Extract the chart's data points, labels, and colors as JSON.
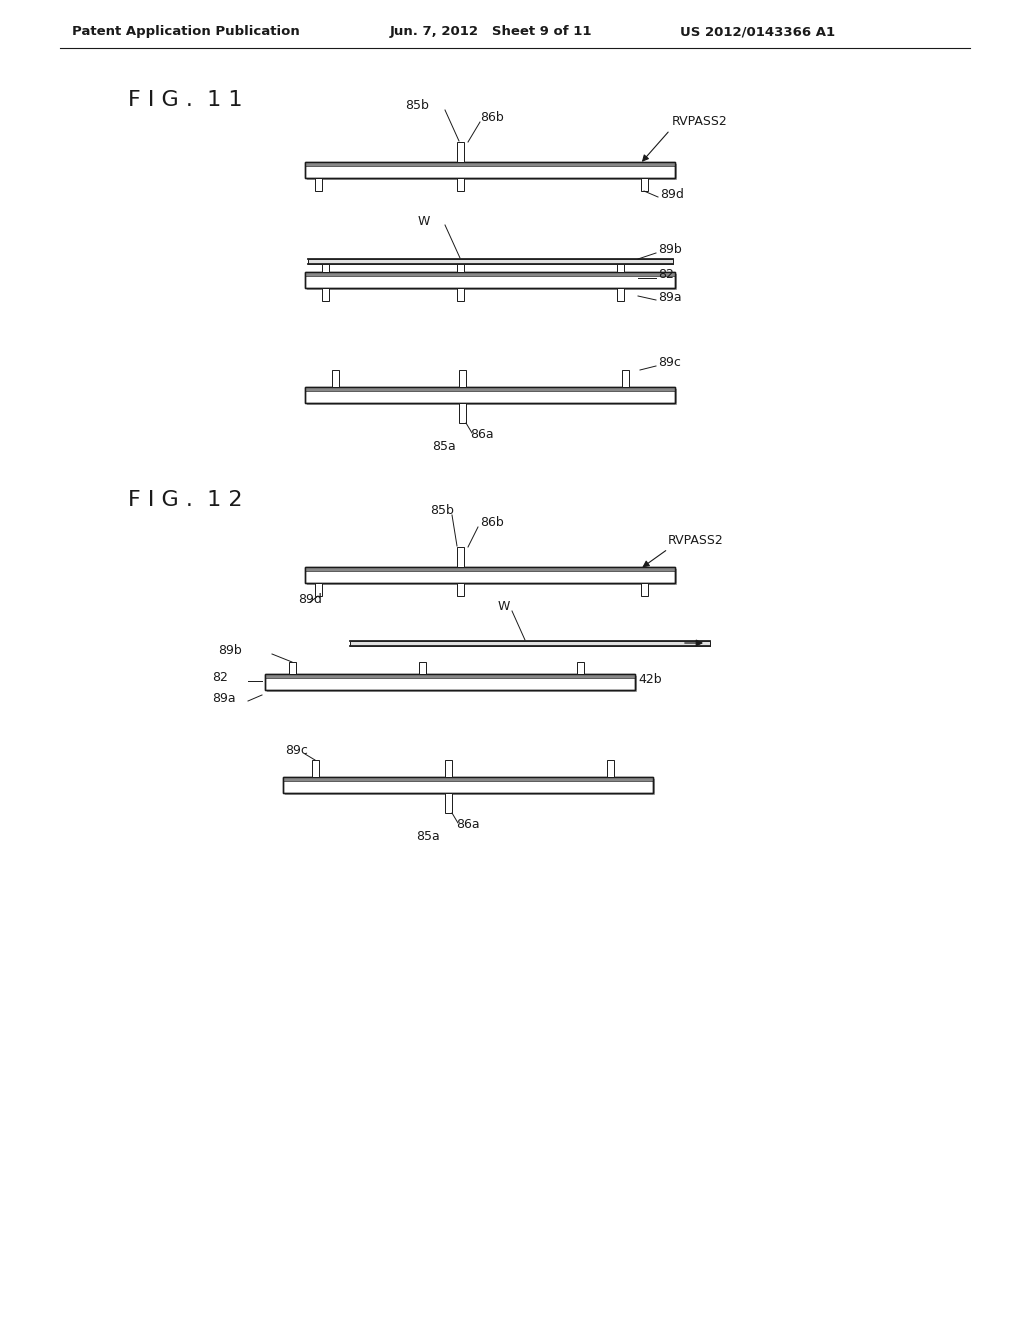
{
  "bg_color": "#ffffff",
  "header_left": "Patent Application Publication",
  "header_mid": "Jun. 7, 2012   Sheet 9 of 11",
  "header_right": "US 2012/0143366 A1",
  "fig11_title": "F I G .  1 1",
  "fig12_title": "F I G .  1 2",
  "line_color": "#1a1a1a",
  "text_color": "#1a1a1a"
}
